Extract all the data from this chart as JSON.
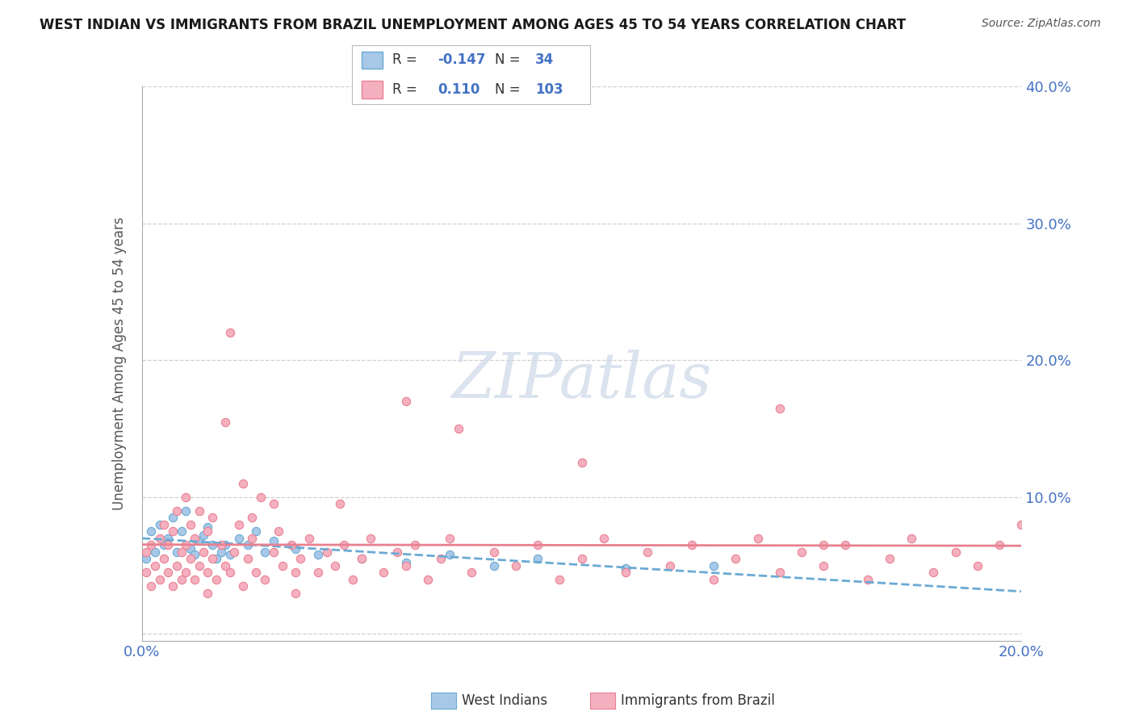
{
  "title": "WEST INDIAN VS IMMIGRANTS FROM BRAZIL UNEMPLOYMENT AMONG AGES 45 TO 54 YEARS CORRELATION CHART",
  "source": "Source: ZipAtlas.com",
  "ylabel": "Unemployment Among Ages 45 to 54 years",
  "xlim": [
    0.0,
    0.2
  ],
  "ylim": [
    -0.005,
    0.4
  ],
  "xtick_positions": [
    0.0,
    0.025,
    0.05,
    0.075,
    0.1,
    0.125,
    0.15,
    0.175,
    0.2
  ],
  "xtick_labels": [
    "0.0%",
    "",
    "",
    "",
    "",
    "",
    "",
    "",
    "20.0%"
  ],
  "ytick_positions": [
    0.0,
    0.1,
    0.2,
    0.3,
    0.4
  ],
  "ytick_labels": [
    "",
    "10.0%",
    "20.0%",
    "30.0%",
    "40.0%"
  ],
  "west_indian_fill": "#a8c8e8",
  "west_indian_edge": "#6aaad4",
  "brazil_fill": "#f5b0c0",
  "brazil_edge": "#e88090",
  "west_indian_line_color": "#6aaad4",
  "brazil_line_color": "#e88090",
  "west_indian_R": -0.147,
  "west_indian_N": 34,
  "brazil_R": 0.11,
  "brazil_N": 103,
  "background_color": "#ffffff",
  "grid_color": "#d0d0d0",
  "title_color": "#1a1a1a",
  "axis_color": "#4472c4",
  "text_color": "#333333",
  "watermark_color": "#ccd8e8",
  "wi_x": [
    0.001,
    0.002,
    0.003,
    0.004,
    0.005,
    0.006,
    0.007,
    0.008,
    0.009,
    0.01,
    0.011,
    0.012,
    0.013,
    0.014,
    0.015,
    0.016,
    0.017,
    0.018,
    0.019,
    0.02,
    0.022,
    0.024,
    0.026,
    0.028,
    0.03,
    0.035,
    0.04,
    0.05,
    0.06,
    0.07,
    0.08,
    0.09,
    0.11,
    0.13
  ],
  "wi_y": [
    0.055,
    0.075,
    0.06,
    0.08,
    0.065,
    0.07,
    0.085,
    0.06,
    0.075,
    0.09,
    0.062,
    0.058,
    0.068,
    0.072,
    0.078,
    0.065,
    0.055,
    0.06,
    0.065,
    0.058,
    0.07,
    0.065,
    0.075,
    0.06,
    0.068,
    0.062,
    0.058,
    0.055,
    0.052,
    0.058,
    0.05,
    0.055,
    0.048,
    0.05
  ],
  "br_x": [
    0.001,
    0.001,
    0.002,
    0.002,
    0.003,
    0.004,
    0.004,
    0.005,
    0.005,
    0.006,
    0.006,
    0.007,
    0.007,
    0.008,
    0.008,
    0.009,
    0.009,
    0.01,
    0.01,
    0.01,
    0.011,
    0.011,
    0.012,
    0.012,
    0.013,
    0.013,
    0.014,
    0.015,
    0.015,
    0.016,
    0.016,
    0.017,
    0.018,
    0.019,
    0.02,
    0.021,
    0.022,
    0.023,
    0.024,
    0.025,
    0.026,
    0.027,
    0.028,
    0.03,
    0.031,
    0.032,
    0.034,
    0.035,
    0.036,
    0.038,
    0.04,
    0.042,
    0.044,
    0.046,
    0.048,
    0.05,
    0.052,
    0.055,
    0.058,
    0.06,
    0.062,
    0.065,
    0.068,
    0.07,
    0.075,
    0.08,
    0.085,
    0.09,
    0.095,
    0.1,
    0.105,
    0.11,
    0.115,
    0.12,
    0.125,
    0.13,
    0.135,
    0.14,
    0.145,
    0.15,
    0.155,
    0.16,
    0.165,
    0.17,
    0.175,
    0.18,
    0.185,
    0.19,
    0.195,
    0.2,
    0.019,
    0.023,
    0.072,
    0.02,
    0.015,
    0.145,
    0.1,
    0.06,
    0.03,
    0.025,
    0.035,
    0.045,
    0.155
  ],
  "br_y": [
    0.045,
    0.06,
    0.035,
    0.065,
    0.05,
    0.04,
    0.07,
    0.055,
    0.08,
    0.045,
    0.065,
    0.035,
    0.075,
    0.05,
    0.09,
    0.04,
    0.06,
    0.045,
    0.065,
    0.1,
    0.055,
    0.08,
    0.04,
    0.07,
    0.05,
    0.09,
    0.06,
    0.045,
    0.075,
    0.055,
    0.085,
    0.04,
    0.065,
    0.05,
    0.045,
    0.06,
    0.08,
    0.035,
    0.055,
    0.07,
    0.045,
    0.1,
    0.04,
    0.06,
    0.075,
    0.05,
    0.065,
    0.045,
    0.055,
    0.07,
    0.045,
    0.06,
    0.05,
    0.065,
    0.04,
    0.055,
    0.07,
    0.045,
    0.06,
    0.05,
    0.065,
    0.04,
    0.055,
    0.07,
    0.045,
    0.06,
    0.05,
    0.065,
    0.04,
    0.055,
    0.07,
    0.045,
    0.06,
    0.05,
    0.065,
    0.04,
    0.055,
    0.07,
    0.045,
    0.06,
    0.05,
    0.065,
    0.04,
    0.055,
    0.07,
    0.045,
    0.06,
    0.05,
    0.065,
    0.08,
    0.155,
    0.11,
    0.15,
    0.22,
    0.03,
    0.165,
    0.125,
    0.17,
    0.095,
    0.085,
    0.03,
    0.095,
    0.065
  ]
}
